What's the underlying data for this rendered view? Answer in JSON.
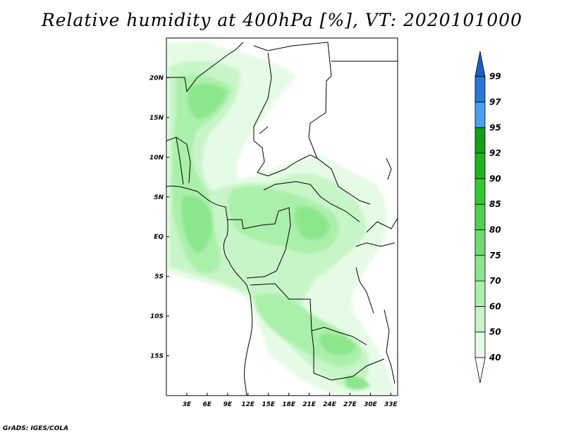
{
  "title": "Relative humidity at 400hPa [%], VT: 2020101000",
  "footer": "GrADS: IGES/COLA",
  "map": {
    "lon_labels": [
      "3E",
      "6E",
      "9E",
      "12E",
      "15E",
      "18E",
      "21E",
      "24E",
      "27E",
      "30E",
      "33E"
    ],
    "lon_values": [
      3,
      6,
      9,
      12,
      15,
      18,
      21,
      24,
      27,
      30,
      33
    ],
    "lat_labels": [
      "20N",
      "15N",
      "10N",
      "5N",
      "EQ",
      "5S",
      "10S",
      "15S"
    ],
    "lat_values": [
      20,
      15,
      10,
      5,
      0,
      -5,
      -10,
      -15
    ],
    "lon_range": [
      0,
      34
    ],
    "lat_range": [
      -20,
      25
    ]
  },
  "colorbar": {
    "labels": [
      "40",
      "50",
      "60",
      "70",
      "75",
      "80",
      "85",
      "90",
      "92",
      "95",
      "97",
      "99"
    ],
    "colors": [
      "#ffffff",
      "#e6fbe6",
      "#c8f5c8",
      "#aaf0aa",
      "#8ce68c",
      "#6edc6e",
      "#50d250",
      "#32c832",
      "#1eb41e",
      "#14a014",
      "#4aa0f0",
      "#2878d7",
      "#1a5fc0"
    ]
  },
  "humidity_colors": {
    "light": "#e6fbe6",
    "pale": "#c8f5c8",
    "mid": "#aaf0aa",
    "green": "#8ce68c",
    "strong": "#6edc6e"
  }
}
